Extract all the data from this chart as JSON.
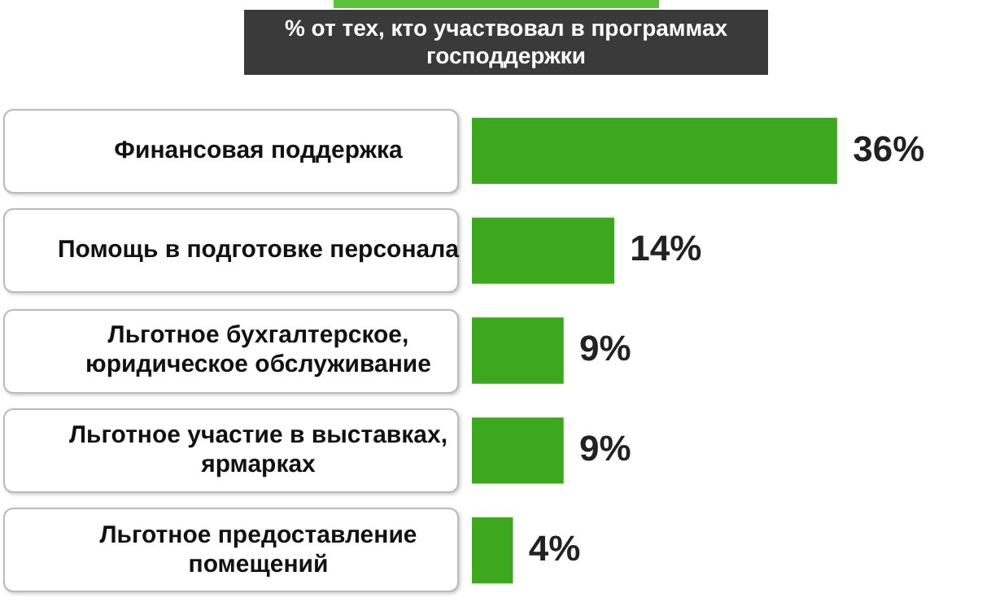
{
  "chart_data": {
    "type": "bar",
    "orientation": "horizontal",
    "title": "% от тех, кто участвовал в программах господдержки",
    "categories": [
      "Финансовая поддержка",
      "Помощь в подготовке персонала",
      "Льготное бухгалтерское, юридическое обслуживание",
      "Льготное участие в выставках, ярмарках",
      "Льготное предоставление помещений"
    ],
    "values": [
      36,
      14,
      9,
      9,
      4
    ],
    "value_labels": [
      "36%",
      "14%",
      "9%",
      "9%",
      "4%"
    ],
    "color": "#3ca81e",
    "grid": false,
    "legend": false,
    "tick_labels": "y"
  }
}
